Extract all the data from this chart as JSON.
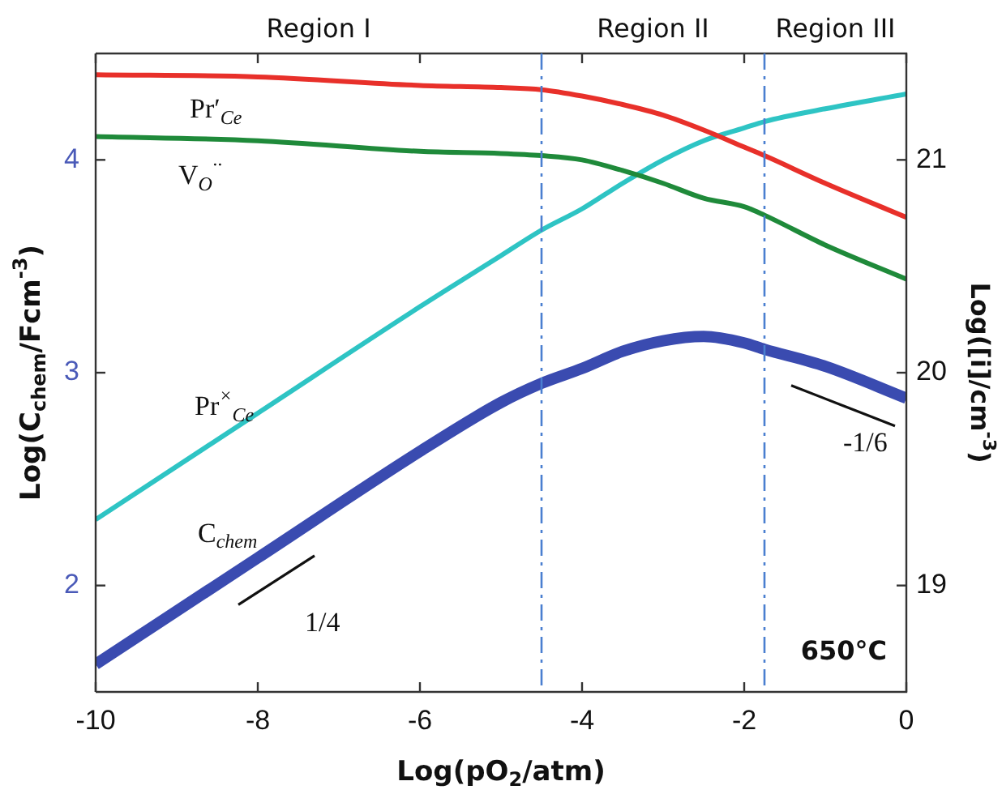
{
  "chart_data": {
    "type": "line",
    "xlabel": "Log(pO$_{2}$/atm)",
    "ylabel": "Log(C$_{chem}$/Fcm$^{-3}$)",
    "y2label": "Log([i]/cm$^{-3}$)",
    "x": [
      -10,
      -8,
      -6,
      -5,
      -4.5,
      -4,
      -3.5,
      -3,
      -2.5,
      -2,
      -1.75,
      -1,
      0
    ],
    "series": [
      {
        "color": "#e8302a",
        "axis": "y2",
        "values": [
          21.4,
          21.39,
          21.35,
          21.34,
          21.33,
          21.3,
          21.26,
          21.21,
          21.14,
          21.06,
          21.02,
          20.89,
          20.73
        ]
      },
      {
        "color": "#1f8a3a",
        "axis": "y2",
        "values": [
          21.11,
          21.09,
          21.04,
          21.03,
          21.02,
          21.0,
          20.95,
          20.89,
          20.82,
          20.78,
          20.74,
          20.6,
          20.44
        ]
      },
      {
        "color": "#2ec4c4",
        "axis": "y2",
        "values": [
          19.31,
          19.81,
          20.31,
          20.55,
          20.67,
          20.77,
          20.89,
          21.0,
          21.09,
          21.15,
          21.18,
          21.24,
          21.31
        ]
      },
      {
        "color": "#3a4bb0",
        "values": [
          1.63,
          2.13,
          2.63,
          2.86,
          2.95,
          3.02,
          3.1,
          3.15,
          3.17,
          3.14,
          3.11,
          3.03,
          2.88
        ]
      },
      {
        "color": "#111111",
        "x": [
          -8.24,
          -7.3
        ],
        "values": [
          1.91,
          2.14
        ]
      },
      {
        "color": "#111111",
        "x": [
          -1.42,
          -0.14
        ],
        "values": [
          2.94,
          2.75
        ]
      }
    ],
    "xlim": [
      -10,
      0
    ],
    "xticks": [
      -10,
      -8,
      -6,
      -4,
      -2,
      0
    ],
    "ylim": [
      1.5,
      4.5
    ],
    "yticks": [
      2,
      3,
      4
    ],
    "y2lim": [
      18.5,
      21.5
    ],
    "y2ticks": [
      19,
      20,
      21
    ],
    "ref_lines": [
      {
        "axis": "x",
        "value": -4.5,
        "color": "#4a7fd0",
        "line_style": "dashed"
      },
      {
        "axis": "x",
        "value": -1.75,
        "color": "#4a7fd0",
        "line_style": "dashed"
      }
    ],
    "annotations": [
      "Pr′$_{Ce}$",
      "V$_{O}$$^{··}$",
      "Pr$^{×}$$_{Ce}$",
      "C$_{chem}$",
      "1/4",
      "-1/6",
      "Region I",
      "Region II",
      "Region III",
      "650°C"
    ],
    "grid": false,
    "legend": false,
    "line_style": "solid",
    "marker": "none"
  }
}
